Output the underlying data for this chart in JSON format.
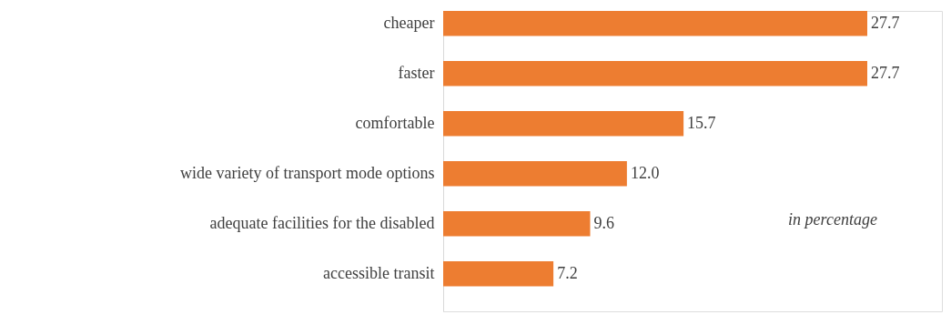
{
  "chart_data": {
    "type": "bar",
    "orientation": "horizontal",
    "categories": [
      "cheaper",
      "faster",
      "comfortable",
      "wide variety of transport mode options",
      "adequate facilities for the disabled",
      "accessible transit"
    ],
    "values": [
      27.7,
      27.7,
      15.7,
      12.0,
      9.6,
      7.2
    ],
    "value_labels": [
      "27.7",
      "27.7",
      "15.7",
      "12.0",
      "9.6",
      "7.2"
    ],
    "color": "#ed7d31",
    "grid": false,
    "annotations": [
      "in percentage"
    ]
  }
}
